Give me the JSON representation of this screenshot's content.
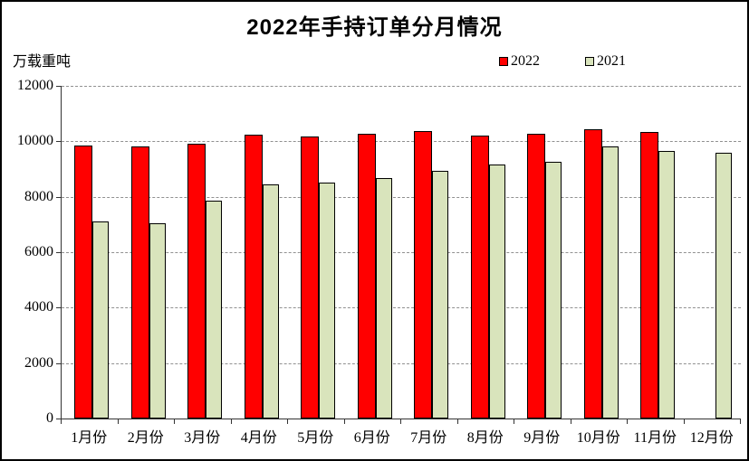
{
  "chart_data": {
    "type": "bar",
    "title": "2022年手持订单分月情况",
    "unit_label": "万载重吨",
    "categories": [
      "1月份",
      "2月份",
      "3月份",
      "4月份",
      "5月份",
      "6月份",
      "7月份",
      "8月份",
      "9月份",
      "10月份",
      "11月份",
      "12月份"
    ],
    "series": [
      {
        "name": "2022",
        "color": "#FF0000",
        "values": [
          9850,
          9800,
          9920,
          10250,
          10190,
          10280,
          10370,
          10200,
          10280,
          10440,
          10350,
          null
        ]
      },
      {
        "name": "2021",
        "color": "#D9E4BC",
        "values": [
          7100,
          7040,
          7850,
          8440,
          8500,
          8660,
          8950,
          9150,
          9250,
          9810,
          9640,
          9580
        ]
      }
    ],
    "ylim": [
      0,
      12000
    ],
    "yticks": [
      0,
      2000,
      4000,
      6000,
      8000,
      10000,
      12000
    ],
    "grid": "horizontal-dashed",
    "legend_position": "top-right",
    "xlabel": "",
    "ylabel": "万载重吨"
  }
}
